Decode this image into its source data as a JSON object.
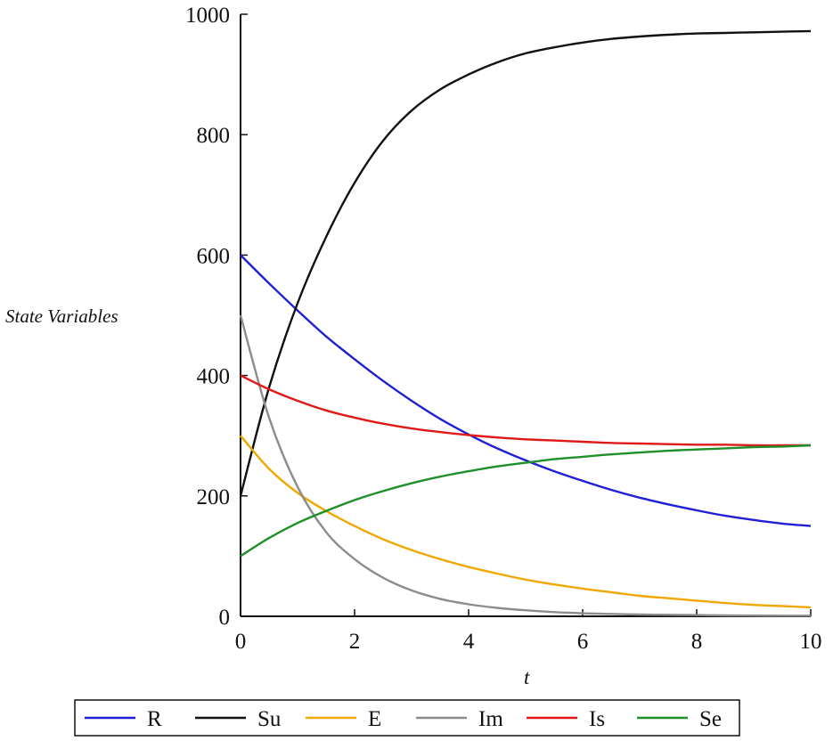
{
  "chart_data": {
    "type": "line",
    "xlabel": "t",
    "ylabel": "State Variables",
    "xlim": [
      0,
      10
    ],
    "ylim": [
      0,
      1000
    ],
    "xticks": [
      0,
      2,
      4,
      6,
      8,
      10
    ],
    "yticks": [
      0,
      200,
      400,
      600,
      800,
      1000
    ],
    "legend_position": "bottom",
    "x": [
      0,
      0.5,
      1,
      1.5,
      2,
      2.5,
      3,
      3.5,
      4,
      4.5,
      5,
      5.5,
      6,
      6.5,
      7,
      7.5,
      8,
      8.5,
      9,
      9.5,
      10
    ],
    "series": [
      {
        "name": "R",
        "color": "#1f1fd6",
        "values": [
          600,
          553,
          508,
          465,
          427,
          391,
          358,
          328,
          302,
          279,
          259,
          241,
          225,
          210,
          197,
          186,
          176,
          167,
          160,
          154,
          150
        ]
      },
      {
        "name": "Su",
        "color": "#111111",
        "values": [
          200,
          380,
          520,
          630,
          720,
          790,
          840,
          875,
          900,
          920,
          935,
          945,
          953,
          959,
          963,
          966,
          968,
          969,
          970,
          971,
          972
        ]
      },
      {
        "name": "E",
        "color": "#f0a800",
        "values": [
          300,
          245,
          205,
          175,
          150,
          128,
          110,
          95,
          82,
          71,
          61,
          53,
          46,
          40,
          34,
          30,
          26,
          22,
          19,
          17,
          15
        ]
      },
      {
        "name": "Im",
        "color": "#8c8c8c",
        "values": [
          500,
          330,
          215,
          140,
          95,
          64,
          43,
          29,
          20,
          14,
          10,
          7,
          5,
          4,
          3,
          2.5,
          2,
          1.5,
          1.2,
          1,
          1
        ]
      },
      {
        "name": "Is",
        "color": "#e01818",
        "values": [
          400,
          377,
          358,
          342,
          330,
          320,
          312,
          306,
          301,
          297,
          294,
          292,
          290,
          288,
          287,
          286,
          285,
          285,
          284,
          284,
          284
        ]
      },
      {
        "name": "Se",
        "color": "#1f8f2a",
        "values": [
          100,
          130,
          155,
          175,
          193,
          208,
          221,
          232,
          241,
          249,
          255,
          261,
          265,
          269,
          272,
          275,
          277,
          279,
          281,
          282,
          284
        ]
      }
    ]
  }
}
